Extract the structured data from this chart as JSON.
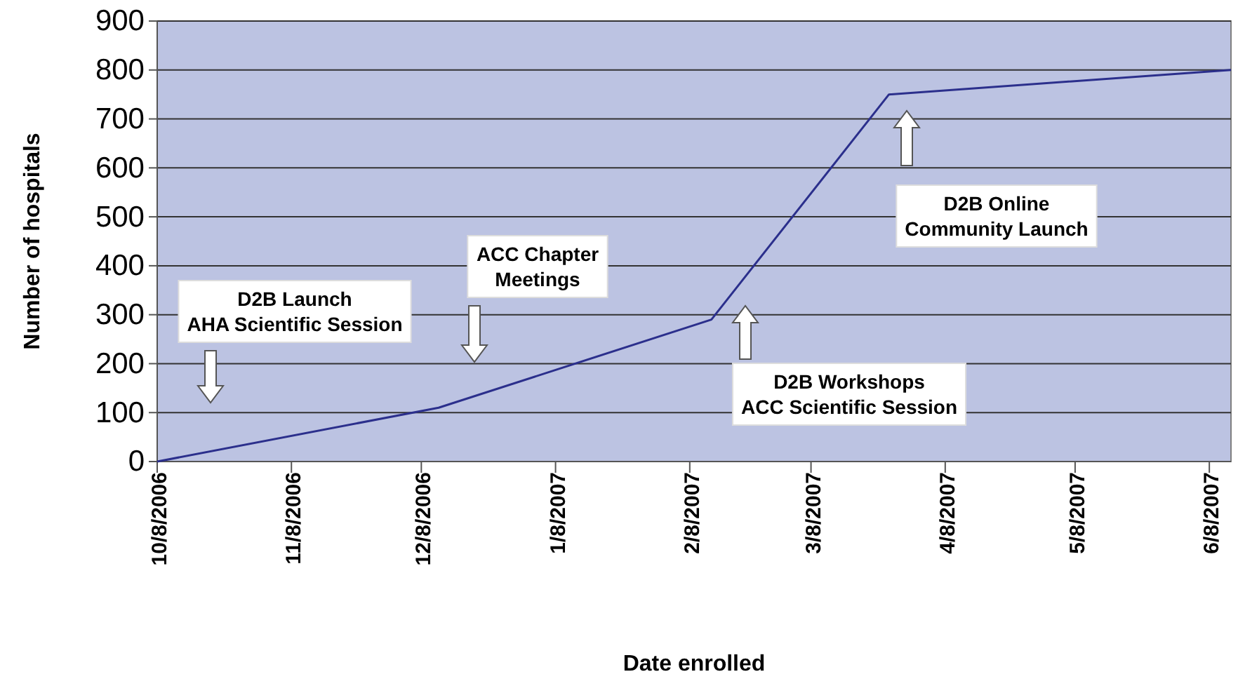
{
  "chart_data": {
    "type": "line",
    "xlabel": "Date enrolled",
    "ylabel": "Number of hospitals",
    "x": [
      "2006-10-08",
      "2006-12-12",
      "2007-02-13",
      "2007-03-26",
      "2007-06-13"
    ],
    "values": [
      0,
      110,
      290,
      750,
      800
    ],
    "color": "#2b2f8c",
    "xlim": [
      "2006-10-08",
      "2007-06-13"
    ],
    "xticks": [
      {
        "value": "2006-10-08",
        "label": "10/8/2006"
      },
      {
        "value": "2006-11-08",
        "label": "11/8/2006"
      },
      {
        "value": "2006-12-08",
        "label": "12/8/2006"
      },
      {
        "value": "2007-01-08",
        "label": "1/8/2007"
      },
      {
        "value": "2007-02-08",
        "label": "2/8/2007"
      },
      {
        "value": "2007-03-08",
        "label": "3/8/2007"
      },
      {
        "value": "2007-04-08",
        "label": "4/8/2007"
      },
      {
        "value": "2007-05-08",
        "label": "5/8/2007"
      },
      {
        "value": "2007-06-08",
        "label": "6/8/2007"
      }
    ],
    "ylim": [
      0,
      900
    ],
    "yticks": [
      0,
      100,
      200,
      300,
      400,
      500,
      600,
      700,
      800,
      900
    ],
    "grid": "y",
    "marker": "none",
    "line_style": "solid",
    "annotations": [
      "D2B Launch\nAHA Scientific Session",
      "ACC Chapter\nMeetings",
      "D2B Workshops\nACC Scientific Session",
      "D2B Online\nCommunity Launch"
    ]
  }
}
